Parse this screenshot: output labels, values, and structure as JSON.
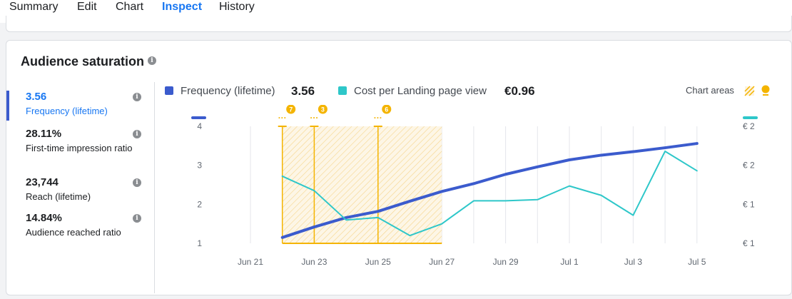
{
  "tabs": [
    {
      "label": "Summary"
    },
    {
      "label": "Edit"
    },
    {
      "label": "Chart"
    },
    {
      "label": "Inspect"
    },
    {
      "label": "History"
    }
  ],
  "active_tab": "Inspect",
  "card": {
    "title": "Audience saturation",
    "chart_areas_label": "Chart areas"
  },
  "metrics": [
    {
      "value": "3.56",
      "label": "Frequency (lifetime)",
      "selected": true
    },
    {
      "value": "28.11%",
      "label": "First-time impression ratio",
      "selected": false
    },
    {
      "value": "23,744",
      "label": "Reach (lifetime)",
      "selected": false
    },
    {
      "value": "14.84%",
      "label": "Audience reached ratio",
      "selected": false
    }
  ],
  "legend": [
    {
      "name": "Frequency (lifetime)",
      "value": "3.56",
      "color": "#3b5bcd"
    },
    {
      "name": "Cost per Landing page view",
      "value": "€0.96",
      "color": "#2ec7c9"
    }
  ],
  "chart_data": {
    "type": "line",
    "x_ticks": [
      "Jun 21",
      "Jun 23",
      "Jun 25",
      "Jun 27",
      "Jun 29",
      "Jul 1",
      "Jul 3",
      "Jul 5"
    ],
    "y_left_ticks": [
      "4",
      "3",
      "2",
      "1"
    ],
    "y_right_ticks": [
      "€ 2",
      "€ 2",
      "€ 1",
      "€ 1"
    ],
    "y_left_range": [
      1,
      4
    ],
    "x_range_days": [
      0,
      14
    ],
    "series": [
      {
        "name": "Frequency (lifetime)",
        "color": "#3b5bcd",
        "axis": "left",
        "x": [
          1,
          2,
          3,
          4,
          5,
          6,
          7,
          8,
          9,
          10,
          11,
          12,
          13,
          14
        ],
        "y": [
          1.15,
          1.42,
          1.66,
          1.82,
          2.08,
          2.33,
          2.53,
          2.77,
          2.96,
          3.14,
          3.26,
          3.35,
          3.45,
          3.56
        ]
      },
      {
        "name": "Cost per Landing page view",
        "color": "#2ec7c9",
        "axis": "left_scaled",
        "x": [
          1,
          2,
          3,
          4,
          5,
          6,
          7,
          8,
          9,
          10,
          11,
          12,
          13,
          14
        ],
        "y": [
          2.72,
          2.35,
          1.6,
          1.66,
          1.2,
          1.5,
          2.09,
          2.09,
          2.12,
          2.47,
          2.23,
          1.72,
          3.36,
          2.86
        ]
      }
    ],
    "highlight_area": {
      "from": 1,
      "to": 6
    },
    "markers": [
      {
        "x": 1,
        "label": "7"
      },
      {
        "x": 2,
        "label": "3"
      },
      {
        "x": 4,
        "label": "6"
      }
    ]
  }
}
